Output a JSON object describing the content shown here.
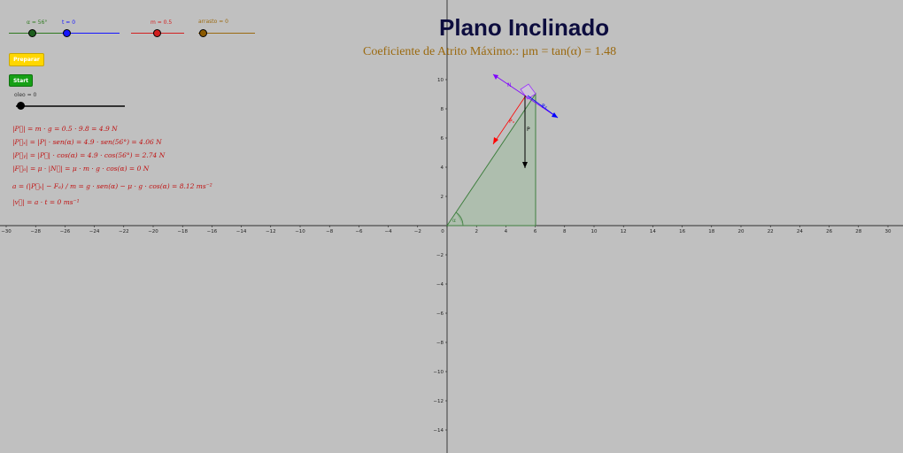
{
  "title": "Plano Inclinado",
  "subtitle": "Coeficiente de Atrito Máximo::  μm = tan(α) = 1.48",
  "sliders": {
    "alpha": {
      "label": "α = 56°",
      "color": "#2f7a1f",
      "knob": "#1e5e1e",
      "value_fraction": 0.55
    },
    "t": {
      "label": "t = 0",
      "color": "#1515ff",
      "knob": "#1515ff",
      "value_fraction": 0.0
    },
    "m": {
      "label": "m = 0.5",
      "color": "#d21f1f",
      "knob": "#d21f1f",
      "value_fraction": 0.5
    },
    "arrasto": {
      "label": "arrasto = 0",
      "color": "#9b6a10",
      "knob": "#8b5a00",
      "value_fraction": 0.0
    },
    "oleo": {
      "label": "oleo = 0",
      "color": "#333333",
      "knob": "#000000",
      "value_fraction": 0.0
    }
  },
  "buttons": {
    "preparar": "Preparar",
    "start": "Start"
  },
  "formulas": [
    "|P⃗| = m · g = 0.5 · 9.8 = 4.9 N",
    "|P⃗ₓ| = |P| · sen(α) = 4.9 · sen(56°) = 4.06 N",
    "|P⃗ᵧ| = |P⃗| · cos(α) = 4.9 · cos(56°) = 2.74 N",
    "|F⃗ₐ| = μ · |N⃗| = μ · m · g · cos(α) = 0 N",
    "a = (|P⃗ₓ| − Fₐ) / m = g · sen(α) − μ · g · cos(α) = 8.12 ms⁻²",
    "|v⃗| = a · t = 0 ms⁻¹"
  ],
  "graph": {
    "x_ticks": [
      "−30",
      "−28",
      "−26",
      "−24",
      "−22",
      "−20",
      "−18",
      "−16",
      "−14",
      "−12",
      "−10",
      "−8",
      "−6",
      "−4",
      "−2",
      "0",
      "2",
      "4",
      "6",
      "8",
      "10",
      "12",
      "14",
      "16",
      "18",
      "20",
      "22",
      "24",
      "26",
      "28",
      "30"
    ],
    "y_ticks_pos": [
      "2",
      "4",
      "6",
      "8",
      "10"
    ],
    "y_ticks_neg": [
      "−2",
      "−4",
      "−6",
      "−8",
      "−10",
      "−12",
      "−14"
    ],
    "angle_label": "α",
    "vector_labels": {
      "N": "N",
      "P": "P",
      "Px": "Pₓ",
      "Py": "Pᵧ"
    },
    "colors": {
      "incline": "#3f7f3f",
      "incline_fill": "#a9bda9",
      "gravity": "#000000",
      "px": "#ff0000",
      "py": "#0000ff",
      "normal": "#7f00ff"
    }
  }
}
